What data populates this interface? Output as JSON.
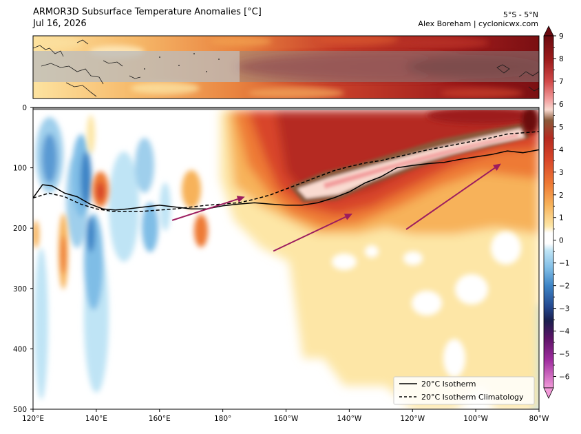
{
  "header": {
    "title": "ARMOR3D Subsurface Temperature Anomalies [°C]",
    "date": "Jul 16, 2026",
    "region": "5°S - 5°N",
    "credit": "Alex Boreham | cyclonicwx.com"
  },
  "chart_data": {
    "type": "heatmap",
    "xlabel": "",
    "ylabel": "",
    "x_ticks": [
      "120°E",
      "140°E",
      "160°E",
      "180°",
      "160°W",
      "140°W",
      "120°W",
      "100°W",
      "80°W"
    ],
    "y_ticks": [
      "0",
      "100",
      "200",
      "300",
      "400",
      "500"
    ],
    "x_range_lon_east": [
      120,
      280
    ],
    "y_range_depth": [
      0,
      500
    ],
    "y_inverted": true,
    "colorbar": {
      "ticks": [
        "9",
        "8",
        "7",
        "6",
        "5",
        "4",
        "3",
        "2",
        "1",
        "0",
        "−1",
        "−2",
        "−3",
        "−4",
        "−5",
        "−6"
      ],
      "range": [
        -6.5,
        9
      ],
      "extend": "both"
    },
    "legend": {
      "position": "lower-right",
      "entries": [
        {
          "label": "20°C Isotherm",
          "style": "solid"
        },
        {
          "label": "20°C Isotherm Climatology",
          "style": "dashed"
        }
      ]
    },
    "series": [
      {
        "name": "20°C Isotherm",
        "lon_east": [
          120,
          123,
          126,
          130,
          134,
          138,
          142,
          146,
          150,
          155,
          160,
          165,
          170,
          175,
          180,
          185,
          190,
          195,
          200,
          205,
          210,
          215,
          220,
          225,
          230,
          235,
          240,
          245,
          250,
          255,
          260,
          265,
          270,
          275,
          280
        ],
        "depth": [
          150,
          128,
          130,
          142,
          148,
          160,
          168,
          170,
          168,
          165,
          162,
          165,
          168,
          168,
          163,
          160,
          158,
          160,
          162,
          162,
          158,
          150,
          140,
          125,
          115,
          100,
          96,
          93,
          91,
          86,
          82,
          78,
          72,
          75,
          70
        ]
      },
      {
        "name": "20°C Isotherm Climatology",
        "lon_east": [
          120,
          125,
          130,
          135,
          140,
          145,
          150,
          155,
          160,
          165,
          170,
          175,
          180,
          185,
          190,
          195,
          200,
          205,
          210,
          215,
          220,
          225,
          230,
          235,
          240,
          245,
          250,
          255,
          260,
          265,
          270,
          275,
          280
        ],
        "depth": [
          150,
          142,
          148,
          160,
          168,
          172,
          172,
          172,
          170,
          168,
          165,
          162,
          160,
          158,
          152,
          145,
          135,
          125,
          115,
          105,
          98,
          92,
          88,
          82,
          76,
          70,
          65,
          60,
          55,
          50,
          44,
          42,
          40
        ]
      }
    ],
    "annotations": [
      {
        "type": "arrow",
        "from_lon_east": 164,
        "from_depth": 187,
        "to_lon_east": 187,
        "to_depth": 148
      },
      {
        "type": "arrow",
        "from_lon_east": 196,
        "from_depth": 238,
        "to_lon_east": 221,
        "to_depth": 176
      },
      {
        "type": "arrow",
        "from_lon_east": 238,
        "from_depth": 202,
        "to_lon_east": 268,
        "to_depth": 93
      }
    ]
  }
}
